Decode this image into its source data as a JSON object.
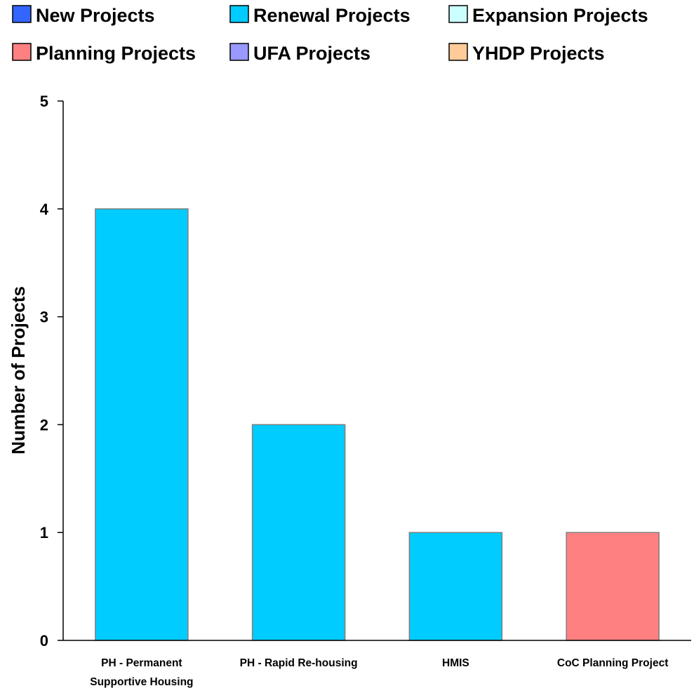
{
  "chart_data": {
    "type": "bar",
    "title": "",
    "xlabel": "",
    "ylabel": "Number of Projects",
    "ylim": [
      0,
      5
    ],
    "yticks": [
      0,
      1,
      2,
      3,
      4,
      5
    ],
    "grid": false,
    "legend_position": "top",
    "legend": [
      {
        "name": "New Projects",
        "color": "#3366FF"
      },
      {
        "name": "Renewal Projects",
        "color": "#00CCFF"
      },
      {
        "name": "Expansion Projects",
        "color": "#CCFFFF"
      },
      {
        "name": "Planning Projects",
        "color": "#FF8080"
      },
      {
        "name": "UFA Projects",
        "color": "#9999FF"
      },
      {
        "name": "YHDP Projects",
        "color": "#FFCC99"
      }
    ],
    "categories": [
      [
        "PH - Permanent",
        "Supportive Housing"
      ],
      [
        "PH - Rapid Re-housing"
      ],
      [
        "HMIS"
      ],
      [
        "CoC Planning Project"
      ]
    ],
    "bars": [
      {
        "category_index": 0,
        "series": "Renewal Projects",
        "value": 4
      },
      {
        "category_index": 1,
        "series": "Renewal Projects",
        "value": 2
      },
      {
        "category_index": 2,
        "series": "Renewal Projects",
        "value": 1
      },
      {
        "category_index": 3,
        "series": "Planning Projects",
        "value": 1
      }
    ]
  }
}
